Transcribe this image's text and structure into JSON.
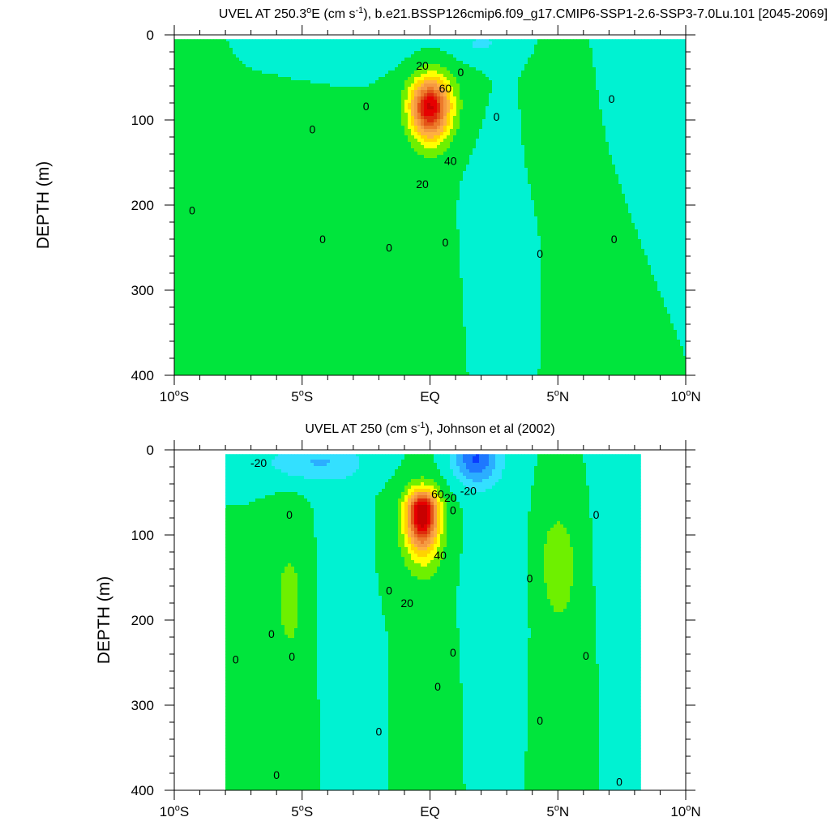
{
  "chart_data": [
    {
      "type": "contour",
      "variable": "UVEL",
      "title_prefix": "UVEL AT 250.3",
      "title_degree": "o",
      "title_after_degree": "E (cm s",
      "title_superscript": "-1",
      "title_suffix": "), b.e21.BSSP126cmip6.f09_g17.CMIP6-SSP1-2.6-SSP3-7.0Lu.101 [2045-2069]",
      "ylabel": "DEPTH (m)",
      "xlim": [
        -10,
        10
      ],
      "ylim": [
        400,
        0
      ],
      "x_ticks": [
        {
          "value": -10,
          "label": "10",
          "deg": "o",
          "suffix": "S"
        },
        {
          "value": -5,
          "label": "5",
          "deg": "o",
          "suffix": "S"
        },
        {
          "value": 0,
          "label": "EQ",
          "deg": "",
          "suffix": ""
        },
        {
          "value": 5,
          "label": "5",
          "deg": "o",
          "suffix": "N"
        },
        {
          "value": 10,
          "label": "10",
          "deg": "o",
          "suffix": "N"
        }
      ],
      "y_ticks": [
        {
          "value": 0,
          "label": "0"
        },
        {
          "value": 100,
          "label": "100"
        },
        {
          "value": 200,
          "label": "200"
        },
        {
          "value": 300,
          "label": "300"
        },
        {
          "value": 400,
          "label": "400"
        }
      ],
      "contour_interval": 10,
      "data_extent_x": [
        -10,
        10
      ],
      "data_extent_top": 5,
      "features": [
        {
          "kind": "jet",
          "x": 0,
          "depth": 85,
          "peak": 90,
          "sx": 0.7,
          "su": 30,
          "sd": 35
        },
        {
          "kind": "jet",
          "x": 0.2,
          "depth": 70,
          "peak": 12,
          "sx": 1.3,
          "su": 40,
          "sd": 70
        },
        {
          "kind": "pos",
          "x": -6,
          "depth": 260,
          "peak": 6,
          "sx": 2.5,
          "sy": 140
        },
        {
          "kind": "pos",
          "x": -0.5,
          "depth": 320,
          "peak": 7,
          "sx": 1.6,
          "sy": 140
        },
        {
          "kind": "pos",
          "x": 5,
          "depth": 120,
          "peak": 7,
          "sx": 1.0,
          "sy": 80
        },
        {
          "kind": "pos",
          "x": 6,
          "depth": 300,
          "peak": 5,
          "sx": 1.2,
          "sy": 150
        },
        {
          "kind": "pos",
          "x": -9.5,
          "depth": 50,
          "peak": 6,
          "sx": 1.2,
          "sy": 35
        },
        {
          "kind": "neg",
          "x": -3.5,
          "depth": 15,
          "peak": -9,
          "sx": 2.5,
          "sy": 25
        },
        {
          "kind": "neg",
          "x": 2,
          "depth": 10,
          "peak": -11,
          "sx": 1.2,
          "sy": 20
        },
        {
          "kind": "neg",
          "x": 2.5,
          "depth": 260,
          "peak": -5,
          "sx": 1.4,
          "sy": 140
        },
        {
          "kind": "neg",
          "x": 8.5,
          "depth": 60,
          "peak": -4,
          "sx": 1.5,
          "sy": 100
        }
      ],
      "contour_labels": [
        {
          "x": -0.3,
          "depth": 36,
          "text": "20"
        },
        {
          "x": 1.2,
          "depth": 44,
          "text": "0"
        },
        {
          "x": 0.6,
          "depth": 63,
          "text": "60"
        },
        {
          "x": -2.5,
          "depth": 84,
          "text": "0"
        },
        {
          "x": -4.6,
          "depth": 111,
          "text": "0"
        },
        {
          "x": 2.6,
          "depth": 96,
          "text": "0"
        },
        {
          "x": 0.8,
          "depth": 148,
          "text": "40"
        },
        {
          "x": -0.3,
          "depth": 175,
          "text": "20"
        },
        {
          "x": -9.3,
          "depth": 206,
          "text": "0"
        },
        {
          "x": -4.2,
          "depth": 240,
          "text": "0"
        },
        {
          "x": -1.6,
          "depth": 250,
          "text": "0"
        },
        {
          "x": 0.6,
          "depth": 244,
          "text": "0"
        },
        {
          "x": 4.3,
          "depth": 257,
          "text": "0"
        },
        {
          "x": 7.1,
          "depth": 75,
          "text": "0"
        },
        {
          "x": 7.2,
          "depth": 240,
          "text": "0"
        }
      ]
    },
    {
      "type": "contour",
      "variable": "UVEL",
      "title_prefix": "UVEL AT 250",
      "title_degree": "",
      "title_after_degree": " (cm s",
      "title_superscript": "-1",
      "title_suffix": "), Johnson et al (2002)",
      "ylabel": "DEPTH (m)",
      "xlim": [
        -10,
        10
      ],
      "ylim": [
        400,
        0
      ],
      "x_ticks": [
        {
          "value": -10,
          "label": "10",
          "deg": "o",
          "suffix": "S"
        },
        {
          "value": -5,
          "label": "5",
          "deg": "o",
          "suffix": "S"
        },
        {
          "value": 0,
          "label": "EQ",
          "deg": "",
          "suffix": ""
        },
        {
          "value": 5,
          "label": "5",
          "deg": "o",
          "suffix": "N"
        },
        {
          "value": 10,
          "label": "10",
          "deg": "o",
          "suffix": "N"
        }
      ],
      "y_ticks": [
        {
          "value": 0,
          "label": "0"
        },
        {
          "value": 100,
          "label": "100"
        },
        {
          "value": 200,
          "label": "200"
        },
        {
          "value": 300,
          "label": "300"
        },
        {
          "value": 400,
          "label": "400"
        }
      ],
      "contour_interval": 10,
      "data_extent_x": [
        -8,
        8.25
      ],
      "data_extent_top": 5,
      "features": [
        {
          "kind": "jet",
          "x": -0.3,
          "depth": 72,
          "peak": 95,
          "sx": 0.55,
          "su": 22,
          "sd": 38
        },
        {
          "kind": "jet",
          "x": -0.3,
          "depth": 90,
          "peak": 25,
          "sx": 0.9,
          "su": 50,
          "sd": 60
        },
        {
          "kind": "pos",
          "x": -5.5,
          "depth": 170,
          "peak": 12,
          "sx": 0.75,
          "sy": 80
        },
        {
          "kind": "pos",
          "x": -5.3,
          "depth": 330,
          "peak": 6,
          "sx": 0.8,
          "sy": 110
        },
        {
          "kind": "pos",
          "x": 5.0,
          "depth": 130,
          "peak": 16,
          "sx": 0.7,
          "sy": 60
        },
        {
          "kind": "pos",
          "x": 5.2,
          "depth": 280,
          "peak": 7,
          "sx": 1.0,
          "sy": 140
        },
        {
          "kind": "pos",
          "x": -7.5,
          "depth": 320,
          "peak": 6,
          "sx": 0.5,
          "sy": 100
        },
        {
          "kind": "pos",
          "x": 0.3,
          "depth": 300,
          "peak": 5,
          "sx": 0.8,
          "sy": 120
        },
        {
          "kind": "neg",
          "x": -4.5,
          "depth": 15,
          "peak": -20,
          "sx": 2.0,
          "sy": 22
        },
        {
          "kind": "neg",
          "x": 1.8,
          "depth": 10,
          "peak": -40,
          "sx": 0.9,
          "sy": 30
        },
        {
          "kind": "neg",
          "x": 2.5,
          "depth": 200,
          "peak": -8,
          "sx": 1.0,
          "sy": 160
        },
        {
          "kind": "neg",
          "x": -3.5,
          "depth": 200,
          "peak": -6,
          "sx": 0.8,
          "sy": 180
        },
        {
          "kind": "neg",
          "x": 7.5,
          "depth": 150,
          "peak": -6,
          "sx": 0.8,
          "sy": 200
        }
      ],
      "contour_labels": [
        {
          "x": -6.7,
          "depth": 15,
          "text": "-20"
        },
        {
          "x": 1.5,
          "depth": 48,
          "text": "-20"
        },
        {
          "x": 0.3,
          "depth": 52,
          "text": "60"
        },
        {
          "x": 0.8,
          "depth": 56,
          "text": "20"
        },
        {
          "x": 0.9,
          "depth": 71,
          "text": "0"
        },
        {
          "x": 0.4,
          "depth": 124,
          "text": "40"
        },
        {
          "x": -5.5,
          "depth": 76,
          "text": "0"
        },
        {
          "x": 6.5,
          "depth": 76,
          "text": "0"
        },
        {
          "x": 3.9,
          "depth": 151,
          "text": "0"
        },
        {
          "x": -1.6,
          "depth": 165,
          "text": "0"
        },
        {
          "x": -0.9,
          "depth": 180,
          "text": "20"
        },
        {
          "x": -6.2,
          "depth": 216,
          "text": "0"
        },
        {
          "x": -7.6,
          "depth": 246,
          "text": "0"
        },
        {
          "x": -5.4,
          "depth": 243,
          "text": "0"
        },
        {
          "x": 0.9,
          "depth": 238,
          "text": "0"
        },
        {
          "x": 6.1,
          "depth": 242,
          "text": "0"
        },
        {
          "x": 0.3,
          "depth": 278,
          "text": "0"
        },
        {
          "x": 4.3,
          "depth": 318,
          "text": "0"
        },
        {
          "x": -2.0,
          "depth": 331,
          "text": "0"
        },
        {
          "x": -6.0,
          "depth": 382,
          "text": "0"
        },
        {
          "x": 7.4,
          "depth": 390,
          "text": "0"
        }
      ]
    }
  ],
  "colormap": {
    "levels": [
      -40,
      -30,
      -20,
      -10,
      0,
      10,
      20,
      30,
      40,
      50,
      60,
      70,
      80,
      90,
      100
    ],
    "colors": [
      "#0a3cff",
      "#1e78ff",
      "#2baeff",
      "#33e0ff",
      "#00f2d2",
      "#00e53c",
      "#6ef000",
      "#ffff00",
      "#ffd300",
      "#ffb040",
      "#f59a42",
      "#ed7a2a",
      "#e35418",
      "#de2a0c",
      "#e60000",
      "#c80000"
    ]
  }
}
